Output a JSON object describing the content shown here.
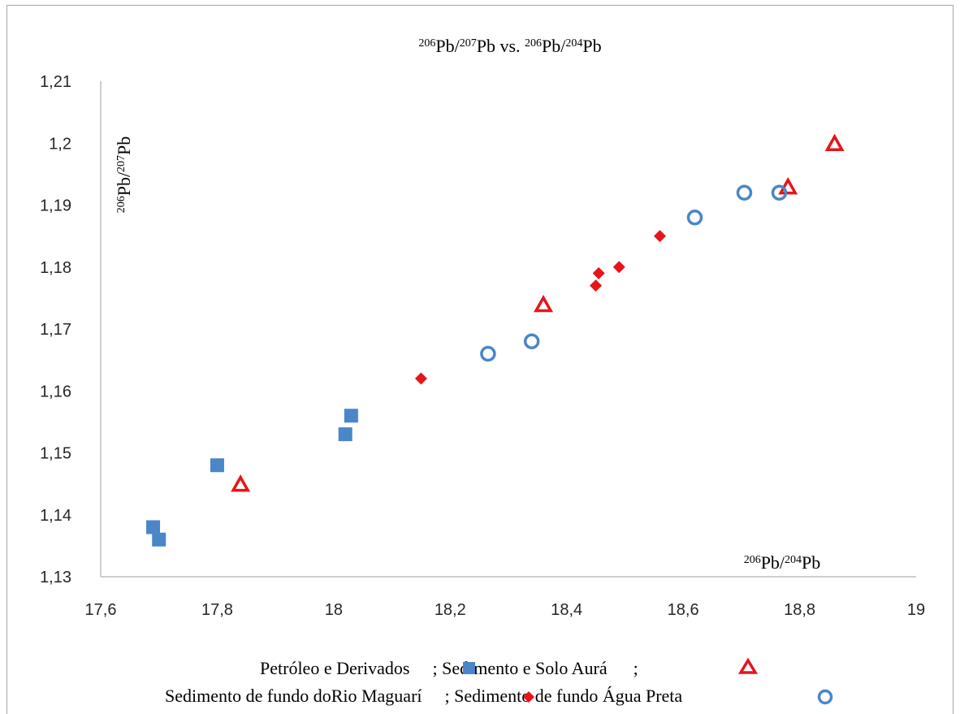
{
  "chart_data": {
    "type": "scatter",
    "title": {
      "a": "206",
      "b": "Pb/",
      "c": "207",
      "d": "Pb vs. ",
      "e": "206",
      "f": "Pb/",
      "g": "204",
      "h": "Pb"
    },
    "xlabel": {
      "a": "206",
      "b": "Pb/",
      "c": "204",
      "d": "Pb"
    },
    "ylabel": {
      "a": "206",
      "b": "Pb/",
      "c": "207",
      "d": "Pb"
    },
    "xlim": [
      17.6,
      19
    ],
    "ylim": [
      1.13,
      1.21
    ],
    "x_ticks": [
      "17,6",
      "17,8",
      "18",
      "18,2",
      "18,4",
      "18,6",
      "18,8",
      "19"
    ],
    "x_tick_values": [
      17.6,
      17.8,
      18.0,
      18.2,
      18.4,
      18.6,
      18.8,
      19.0
    ],
    "y_ticks": [
      "1,13",
      "1,14",
      "1,15",
      "1,16",
      "1,17",
      "1,18",
      "1,19",
      "1,2",
      "1,21"
    ],
    "y_tick_values": [
      1.13,
      1.14,
      1.15,
      1.16,
      1.17,
      1.18,
      1.19,
      1.2,
      1.21
    ],
    "grid": false,
    "legend_position": "bottom",
    "legend_line1": {
      "s1": "Petróleo e Derivados",
      "sep1": "; Sedimento e Solo Aurá",
      "sep2": ";"
    },
    "legend_line2": {
      "s3": "Sedimento de fundo doRio Maguarí",
      "sep3": "; Sedimento de fundo Água Preta"
    },
    "series": [
      {
        "name": "Petróleo e Derivados",
        "marker": "square",
        "color": "#4a86c8",
        "points": [
          [
            17.69,
            1.138
          ],
          [
            17.7,
            1.136
          ],
          [
            17.8,
            1.148
          ],
          [
            18.02,
            1.153
          ],
          [
            18.03,
            1.156
          ]
        ]
      },
      {
        "name": "Sedimento e Solo Aurá",
        "marker": "triangle-open",
        "color": "#e8141a",
        "points": [
          [
            17.84,
            1.145
          ],
          [
            18.36,
            1.174
          ],
          [
            18.78,
            1.193
          ],
          [
            18.86,
            1.2
          ]
        ]
      },
      {
        "name": "Sedimento de fundo doRio Maguarí",
        "marker": "diamond",
        "color": "#e8141a",
        "points": [
          [
            18.15,
            1.162
          ],
          [
            18.45,
            1.177
          ],
          [
            18.455,
            1.179
          ],
          [
            18.49,
            1.18
          ],
          [
            18.56,
            1.185
          ]
        ]
      },
      {
        "name": "Sedimento de fundo Água Preta",
        "marker": "circle-open",
        "color": "#4a86c8",
        "points": [
          [
            18.265,
            1.166
          ],
          [
            18.34,
            1.168
          ],
          [
            18.62,
            1.188
          ],
          [
            18.705,
            1.192
          ],
          [
            18.765,
            1.192
          ]
        ]
      }
    ]
  }
}
